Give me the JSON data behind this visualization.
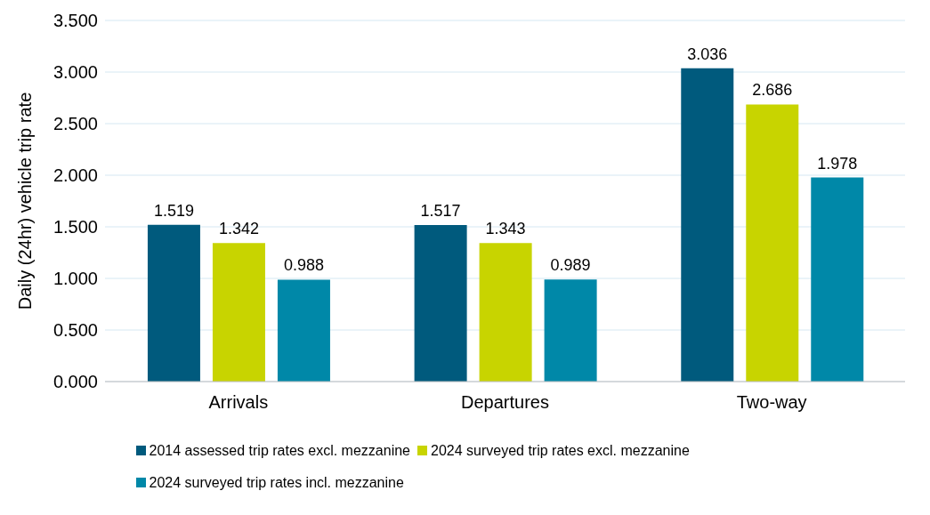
{
  "chart_data": {
    "type": "bar",
    "ylabel": "Daily (24hr) vehicle trip rate",
    "categories": [
      "Arrivals",
      "Departures",
      "Two-way"
    ],
    "series": [
      {
        "name": "2014 assessed trip rates excl. mezzanine",
        "color": "#005a7d",
        "values": [
          1.519,
          1.517,
          3.036
        ]
      },
      {
        "name": "2024 surveyed trip rates excl. mezzanine",
        "color": "#c8d400",
        "values": [
          1.342,
          1.343,
          2.686
        ]
      },
      {
        "name": "2024 surveyed trip rates incl. mezzanine",
        "color": "#0088a8",
        "values": [
          0.988,
          0.989,
          1.978
        ]
      }
    ],
    "ylim": [
      0,
      3.5
    ],
    "yticks": [
      {
        "value": 0,
        "label": "0.000"
      },
      {
        "value": 0.5,
        "label": "0.500"
      },
      {
        "value": 1,
        "label": "1.000"
      },
      {
        "value": 1.5,
        "label": "1.500"
      },
      {
        "value": 2,
        "label": "2.000"
      },
      {
        "value": 2.5,
        "label": "2.500"
      },
      {
        "value": 3,
        "label": "3.000"
      },
      {
        "value": 3.5,
        "label": "3.500"
      }
    ],
    "grid": "y",
    "legend": "bottom",
    "data_labels": true
  }
}
